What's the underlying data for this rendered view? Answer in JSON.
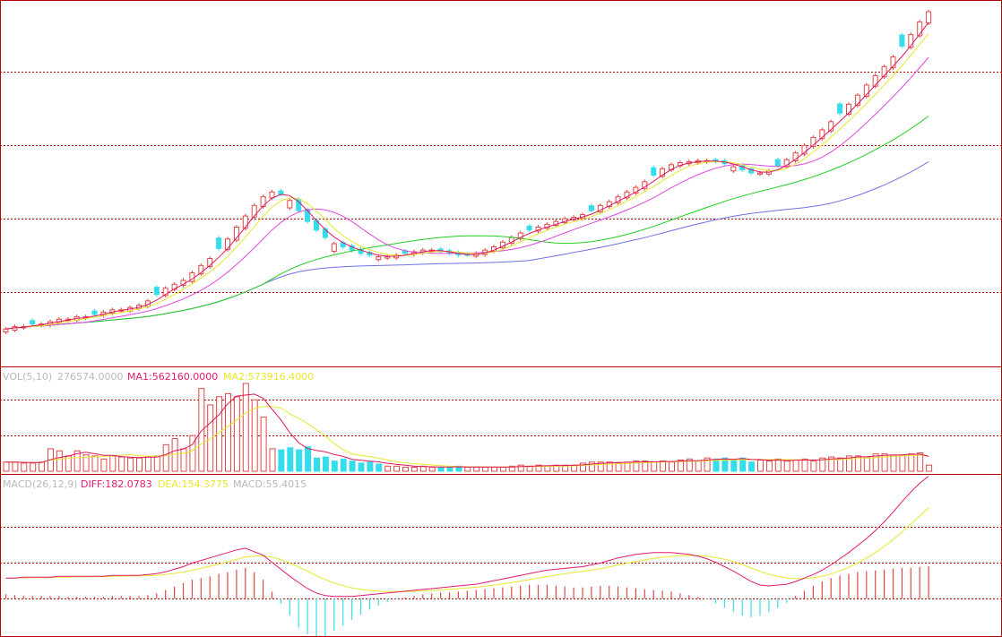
{
  "colors": {
    "background": "#ffffff",
    "frame": "#b00000",
    "grid": "#b00000",
    "candle_up": "#e04848",
    "candle_down": "#35dcec",
    "ma_short": "#e0175a",
    "ma_mid": "#e8e82a",
    "ma_long": "#e048e0",
    "ma_green": "#20d020",
    "ma_blue": "#7070e8",
    "label_gray": "#b8b8b8",
    "label_magenta": "#e01a70",
    "label_yellow": "#e8e82a"
  },
  "vol_panel": {
    "name": "VOL(5,10)",
    "value": "276574.0000",
    "ma1": "MA1:562160.0000",
    "ma2": "MA2:573916.4000"
  },
  "macd_panel": {
    "name": "MACD(26,12,9)",
    "diff": "DIFF:182.0783",
    "dea": "DEA:154.3775",
    "macd": "MACD:55.4015"
  },
  "chart_data": [
    {
      "panel": "price",
      "type": "candlestick",
      "close": [
        70,
        71,
        71,
        72,
        72,
        73,
        74,
        74,
        75,
        75,
        76,
        77,
        78,
        78,
        79,
        80,
        82,
        85,
        88,
        90,
        92,
        96,
        100,
        104,
        110,
        116,
        124,
        132,
        140,
        147,
        151,
        149,
        144,
        136,
        128,
        122,
        117,
        113,
        111,
        109,
        107,
        106,
        105,
        105,
        106,
        107,
        108,
        109,
        109,
        108,
        107,
        106,
        106,
        107,
        109,
        111,
        114,
        117,
        120,
        122,
        124,
        126,
        128,
        130,
        131,
        133,
        136,
        140,
        143,
        147,
        151,
        155,
        160,
        166,
        172,
        176,
        178,
        179,
        180,
        180,
        179,
        177,
        174,
        171,
        168,
        168,
        170,
        175,
        181,
        188,
        196,
        205,
        214,
        224,
        235,
        247,
        260,
        275,
        290,
        305,
        322,
        342,
        365,
        392,
        415
      ],
      "volume": [
        0.9,
        0.9,
        0.8,
        0.8,
        0.9,
        2.2,
        2.0,
        1.5,
        2.0,
        1.6,
        1.5,
        1.2,
        1.5,
        1.4,
        1.3,
        1.3,
        1.4,
        1.5,
        2.6,
        3.2,
        2.2,
        3.5,
        8.1,
        6.5,
        7.3,
        7.6,
        7.3,
        8.6,
        7.0,
        5.3,
        2.2,
        2.1,
        2.3,
        2.1,
        2.4,
        1.3,
        1.4,
        1.0,
        1.2,
        1.0,
        0.8,
        0.9,
        0.7,
        0.5,
        0.5,
        0.4,
        0.4,
        0.5,
        0.4,
        0.4,
        0.4,
        0.5,
        0.4,
        0.4,
        0.4,
        0.4,
        0.4,
        0.5,
        0.6,
        0.5,
        0.6,
        0.5,
        0.6,
        0.6,
        0.6,
        0.8,
        0.9,
        0.9,
        0.9,
        0.8,
        0.9,
        1.0,
        1.0,
        0.9,
        1.0,
        0.9,
        1.1,
        1.2,
        1.0,
        1.3,
        1.2,
        1.3,
        1.1,
        1.3,
        0.9,
        1.1,
        1.0,
        1.2,
        1.0,
        1.1,
        1.2,
        1.0,
        1.3,
        1.4,
        1.3,
        1.5,
        1.5,
        1.4,
        1.7,
        1.7,
        1.6,
        1.6,
        1.7,
        1.8,
        0.6
      ],
      "macd_hist": [
        0.5,
        0.4,
        0.3,
        0.3,
        0.3,
        0.3,
        0.3,
        0.2,
        0.2,
        0.2,
        0.2,
        0.2,
        0.3,
        0.3,
        0.3,
        0.3,
        0.4,
        0.6,
        1.0,
        1.4,
        1.8,
        2.2,
        2.4,
        2.6,
        2.9,
        3.1,
        3.4,
        3.6,
        3.1,
        2.2,
        0.8,
        -0.6,
        -2.0,
        -3.4,
        -4.2,
        -4.6,
        -4.4,
        -3.8,
        -3.2,
        -2.5,
        -1.9,
        -1.3,
        -0.8,
        -0.4,
        -0.1,
        0.1,
        0.3,
        0.5,
        0.6,
        0.7,
        0.7,
        0.8,
        0.9,
        1.0,
        1.1,
        1.2,
        1.3,
        1.4,
        1.5,
        1.6,
        1.6,
        1.6,
        1.5,
        1.4,
        1.3,
        1.3,
        1.4,
        1.5,
        1.5,
        1.4,
        1.3,
        1.2,
        1.1,
        1.0,
        0.9,
        0.8,
        0.6,
        0.4,
        0.2,
        -0.1,
        -0.6,
        -1.1,
        -1.6,
        -2.0,
        -2.2,
        -2.0,
        -1.6,
        -1.1,
        -0.5,
        0.3,
        0.9,
        1.5,
        2.0,
        2.4,
        2.7,
        2.9,
        3.1,
        3.2,
        3.3,
        3.4,
        3.5,
        3.6,
        3.6,
        3.7,
        3.8
      ],
      "diff": [
        10,
        10,
        11,
        11,
        11,
        11,
        12,
        12,
        12,
        12,
        12,
        12,
        13,
        13,
        13,
        13,
        14,
        15,
        17,
        20,
        23,
        27,
        30,
        33,
        36,
        39,
        42,
        44,
        40,
        36,
        28,
        20,
        12,
        5,
        -2,
        -7,
        -10,
        -11,
        -11,
        -11,
        -10,
        -9,
        -8,
        -7,
        -6,
        -5,
        -4,
        -3,
        -2,
        -1,
        0,
        1,
        2,
        3,
        5,
        7,
        9,
        11,
        13,
        15,
        17,
        19,
        20,
        21,
        22,
        23,
        25,
        27,
        30,
        33,
        35,
        37,
        38,
        39,
        39,
        39,
        38,
        37,
        35,
        32,
        28,
        23,
        18,
        12,
        6,
        2,
        1,
        2,
        3,
        6,
        10,
        14,
        19,
        25,
        32,
        39,
        47,
        55,
        64,
        74,
        85,
        97,
        108,
        118,
        126
      ]
    }
  ]
}
